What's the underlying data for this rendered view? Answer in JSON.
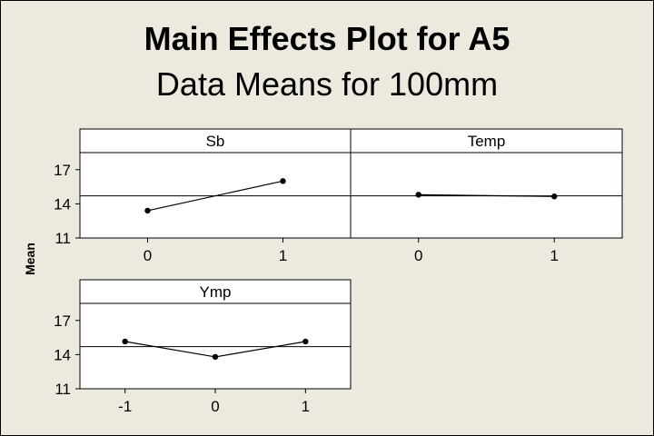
{
  "chart_data": {
    "type": "line",
    "title": "Main Effects Plot for A5",
    "subtitle": "Data Means for 100mm",
    "ylabel": "Mean",
    "ylim": [
      11,
      18.5
    ],
    "yticks": [
      11,
      14,
      17
    ],
    "overall_mean": 14.7,
    "panels": [
      {
        "name": "Sb",
        "categories": [
          "0",
          "1"
        ],
        "values": [
          13.4,
          16.0
        ]
      },
      {
        "name": "Temp",
        "categories": [
          "0",
          "1"
        ],
        "values": [
          14.8,
          14.65
        ]
      },
      {
        "name": "Ymp",
        "categories": [
          "-1",
          "0",
          "1"
        ],
        "values": [
          15.15,
          13.8,
          15.15
        ]
      }
    ]
  }
}
